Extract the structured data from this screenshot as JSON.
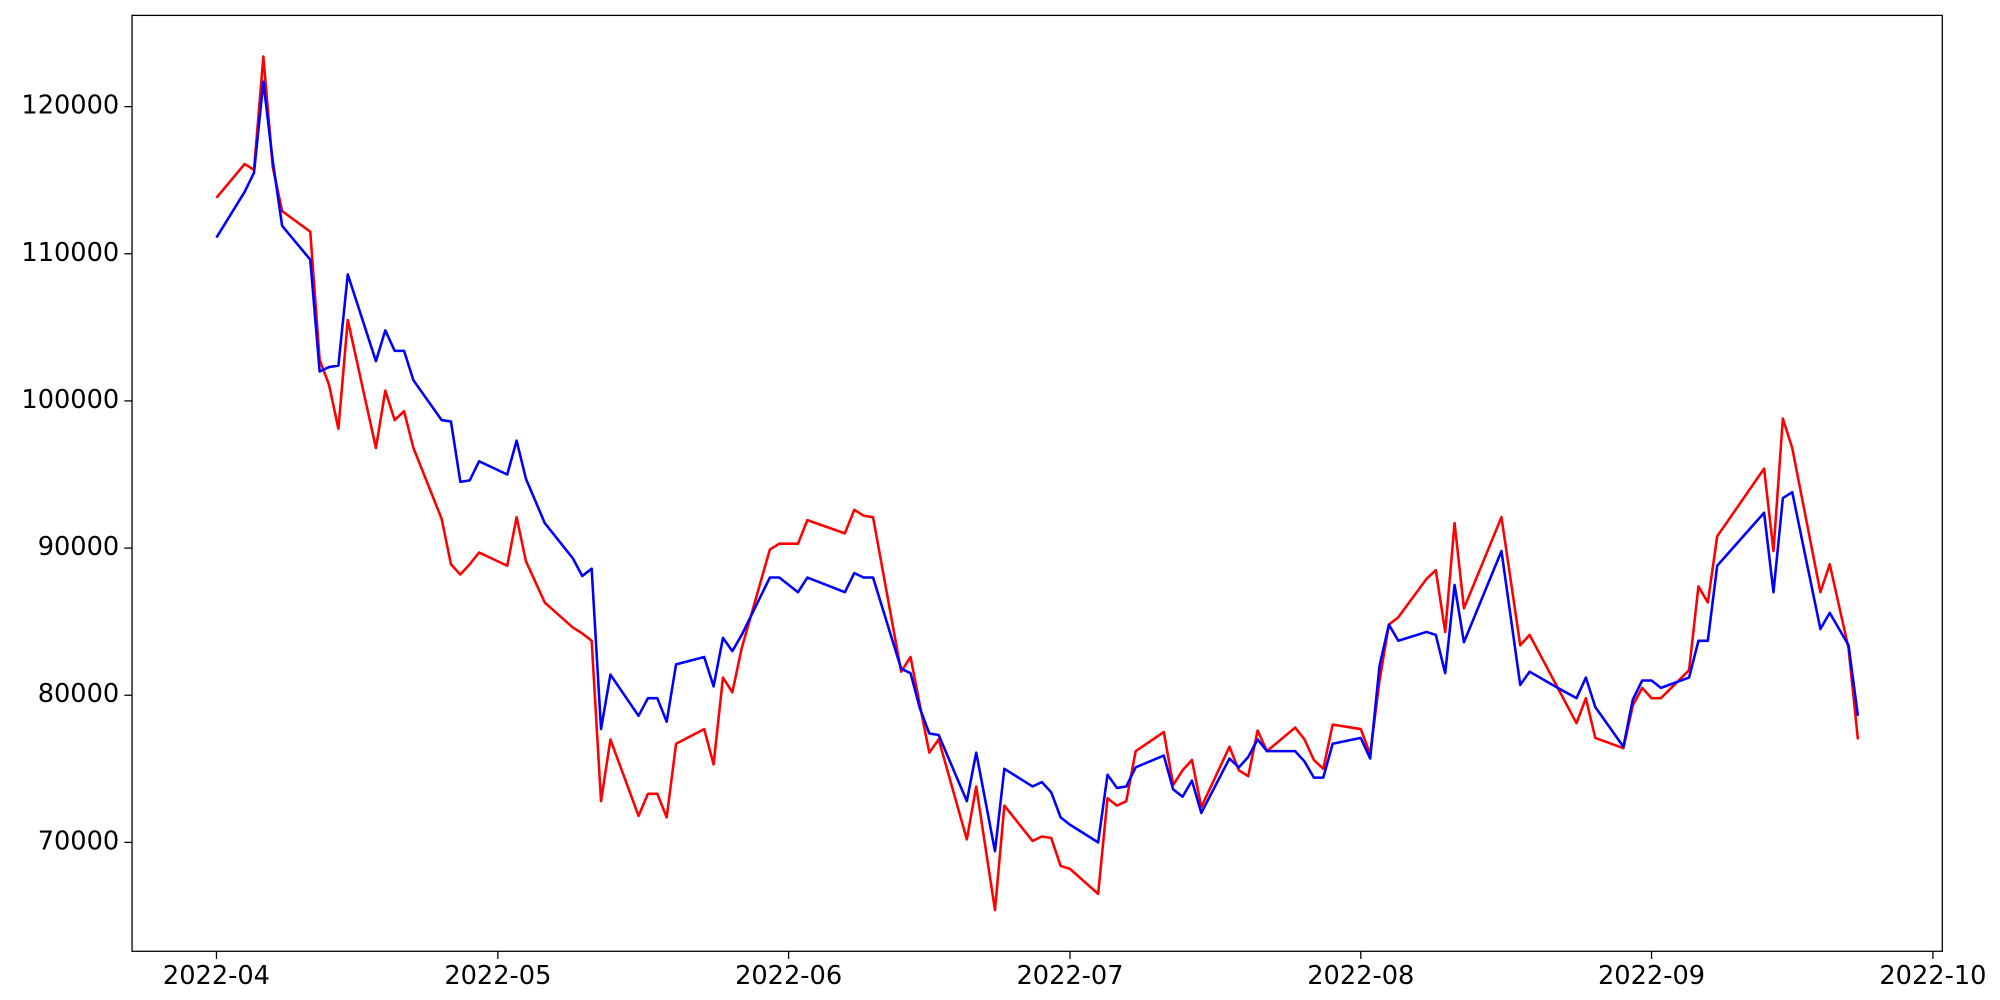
{
  "chart_data": {
    "type": "line",
    "x": [
      "2022-04-01",
      "2022-04-04",
      "2022-04-05",
      "2022-04-06",
      "2022-04-07",
      "2022-04-08",
      "2022-04-11",
      "2022-04-12",
      "2022-04-13",
      "2022-04-14",
      "2022-04-15",
      "2022-04-18",
      "2022-04-19",
      "2022-04-20",
      "2022-04-21",
      "2022-04-22",
      "2022-04-25",
      "2022-04-26",
      "2022-04-27",
      "2022-04-28",
      "2022-04-29",
      "2022-05-02",
      "2022-05-03",
      "2022-05-04",
      "2022-05-06",
      "2022-05-09",
      "2022-05-10",
      "2022-05-11",
      "2022-05-12",
      "2022-05-13",
      "2022-05-16",
      "2022-05-17",
      "2022-05-18",
      "2022-05-19",
      "2022-05-20",
      "2022-05-23",
      "2022-05-24",
      "2022-05-25",
      "2022-05-26",
      "2022-05-27",
      "2022-05-30",
      "2022-05-31",
      "2022-06-02",
      "2022-06-03",
      "2022-06-07",
      "2022-06-08",
      "2022-06-09",
      "2022-06-10",
      "2022-06-13",
      "2022-06-14",
      "2022-06-15",
      "2022-06-16",
      "2022-06-17",
      "2022-06-20",
      "2022-06-21",
      "2022-06-23",
      "2022-06-24",
      "2022-06-27",
      "2022-06-28",
      "2022-06-29",
      "2022-06-30",
      "2022-07-01",
      "2022-07-04",
      "2022-07-05",
      "2022-07-06",
      "2022-07-07",
      "2022-07-08",
      "2022-07-11",
      "2022-07-12",
      "2022-07-13",
      "2022-07-14",
      "2022-07-15",
      "2022-07-18",
      "2022-07-19",
      "2022-07-20",
      "2022-07-21",
      "2022-07-22",
      "2022-07-25",
      "2022-07-26",
      "2022-07-27",
      "2022-07-28",
      "2022-07-29",
      "2022-08-01",
      "2022-08-02",
      "2022-08-03",
      "2022-08-04",
      "2022-08-05",
      "2022-08-08",
      "2022-08-09",
      "2022-08-10",
      "2022-08-11",
      "2022-08-12",
      "2022-08-16",
      "2022-08-18",
      "2022-08-19",
      "2022-08-22",
      "2022-08-24",
      "2022-08-25",
      "2022-08-26",
      "2022-08-29",
      "2022-08-30",
      "2022-08-31",
      "2022-09-01",
      "2022-09-02",
      "2022-09-05",
      "2022-09-06",
      "2022-09-07",
      "2022-09-08",
      "2022-09-13",
      "2022-09-14",
      "2022-09-15",
      "2022-09-16",
      "2022-09-19",
      "2022-09-20",
      "2022-09-22",
      "2022-09-23"
    ],
    "series": [
      {
        "color": "#ff0000",
        "values": [
          113800,
          116100,
          115700,
          123400,
          115900,
          112900,
          111500,
          102800,
          101100,
          98100,
          105500,
          96800,
          100700,
          98700,
          99300,
          96800,
          92000,
          88900,
          88200,
          88900,
          89700,
          88800,
          92100,
          89100,
          86300,
          84600,
          84200,
          83700,
          72800,
          77000,
          71800,
          73300,
          73300,
          71700,
          76700,
          77700,
          75300,
          81200,
          80200,
          83200,
          89900,
          90300,
          90300,
          91900,
          91000,
          92600,
          92200,
          92100,
          81600,
          82600,
          79300,
          76100,
          77000,
          70200,
          73800,
          65400,
          72500,
          70100,
          70400,
          70300,
          68400,
          68200,
          66500,
          73000,
          72500,
          72800,
          76200,
          77500,
          73900,
          74900,
          75600,
          72400,
          76500,
          74900,
          74500,
          77600,
          76200,
          77800,
          77000,
          75600,
          75000,
          78000,
          77700,
          76000,
          81000,
          84800,
          85300,
          87900,
          88500,
          84300,
          91700,
          85900,
          92100,
          83400,
          84100,
          80500,
          78100,
          79800,
          77100,
          76400,
          79300,
          80500,
          79800,
          79800,
          81700,
          87400,
          86300,
          90800,
          95400,
          89800,
          98800,
          96800,
          87000,
          88900,
          83200,
          77000
        ]
      },
      {
        "color": "#0000ff",
        "values": [
          111100,
          114200,
          115500,
          121700,
          116300,
          111900,
          109600,
          102000,
          102300,
          102400,
          108600,
          102700,
          104800,
          103400,
          103400,
          101400,
          98700,
          98600,
          94500,
          94600,
          95900,
          95000,
          97300,
          94700,
          91700,
          89300,
          88100,
          88600,
          77700,
          81400,
          78600,
          79800,
          79800,
          78200,
          82100,
          82600,
          80600,
          83900,
          83000,
          84100,
          88000,
          88000,
          87000,
          88000,
          87000,
          88300,
          88000,
          88000,
          81800,
          81500,
          79100,
          77400,
          77300,
          72800,
          76100,
          69400,
          75000,
          73800,
          74100,
          73400,
          71700,
          71200,
          70000,
          74600,
          73700,
          73800,
          75100,
          75900,
          73600,
          73100,
          74200,
          72000,
          75700,
          75100,
          75800,
          77000,
          76200,
          76200,
          75500,
          74400,
          74400,
          76700,
          77100,
          75700,
          82000,
          84800,
          83700,
          84300,
          84100,
          81500,
          87500,
          83600,
          89800,
          80700,
          81600,
          80500,
          79800,
          81200,
          79200,
          76500,
          79700,
          81000,
          81000,
          80500,
          81200,
          83700,
          83700,
          88800,
          92400,
          87000,
          93400,
          93800,
          84500,
          85600,
          83400,
          78600
        ]
      }
    ],
    "xlim": [
      "2022-03-23",
      "2022-10-02"
    ],
    "xticks": [
      {
        "value": "2022-04-01",
        "label": "2022-04"
      },
      {
        "value": "2022-05-01",
        "label": "2022-05"
      },
      {
        "value": "2022-06-01",
        "label": "2022-06"
      },
      {
        "value": "2022-07-01",
        "label": "2022-07"
      },
      {
        "value": "2022-08-01",
        "label": "2022-08"
      },
      {
        "value": "2022-09-01",
        "label": "2022-09"
      },
      {
        "value": "2022-10-01",
        "label": "2022-10"
      }
    ],
    "ylim": [
      62600,
      126200
    ],
    "yticks": [
      70000,
      80000,
      90000,
      100000,
      110000,
      120000
    ]
  }
}
